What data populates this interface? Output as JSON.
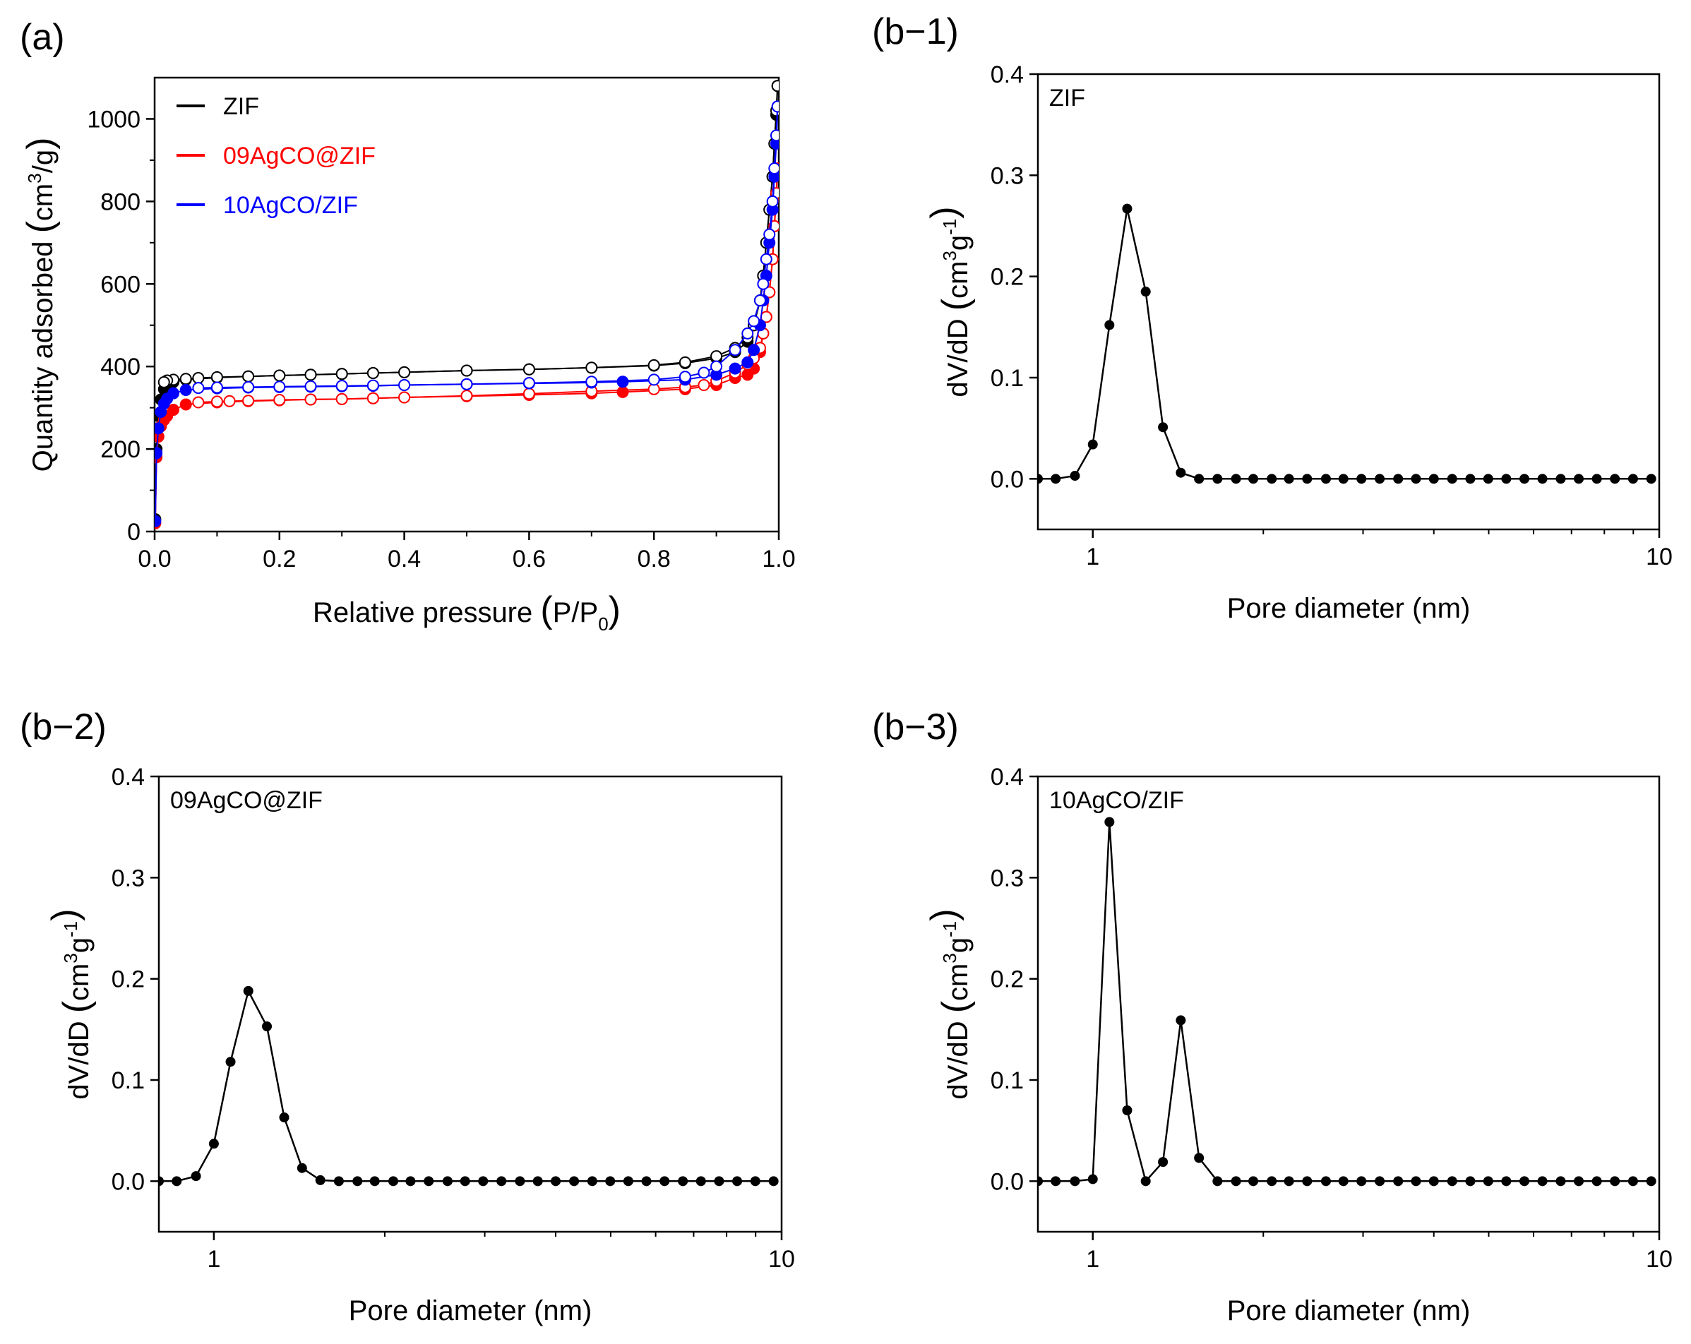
{
  "chart_data": [
    {
      "id": "a",
      "panel_label": "(a)",
      "type": "line",
      "title": "",
      "xlabel": {
        "text": "Relative pressure",
        "open": "(",
        "main": "P/P",
        "sub": "0",
        "close": ")"
      },
      "ylabel": {
        "main": "Quantity adsorbed",
        "open": "(",
        "unit": "cm",
        "sup": "3",
        "unit_tail": "/g",
        "close": ")"
      },
      "xlim": [
        0.0,
        1.0
      ],
      "ylim": [
        0,
        1100
      ],
      "xticks": [
        "0.0",
        "0.2",
        "0.4",
        "0.6",
        "0.8",
        "1.0"
      ],
      "xtick_values": [
        0.0,
        0.2,
        0.4,
        0.6,
        0.8,
        1.0
      ],
      "yticks": [
        "0",
        "200",
        "400",
        "600",
        "800",
        "1000"
      ],
      "ytick_values": [
        0,
        200,
        400,
        600,
        800,
        1000
      ],
      "legend_position": "top-left",
      "marker_note": "filled = adsorption, open = desorption",
      "series": [
        {
          "name": "ZIF",
          "color": "#000000",
          "adsorption": {
            "x": [
              0.001,
              0.003,
              0.006,
              0.01,
              0.015,
              0.02,
              0.03,
              0.05,
              0.1,
              0.15,
              0.2,
              0.25,
              0.3,
              0.35,
              0.4,
              0.5,
              0.6,
              0.7,
              0.8,
              0.85,
              0.9,
              0.93,
              0.95,
              0.96,
              0.97,
              0.975,
              0.98,
              0.985,
              0.99,
              0.993,
              0.996,
              0.998
            ],
            "y": [
              30,
              200,
              280,
              320,
              345,
              355,
              362,
              368,
              373,
              376,
              378,
              380,
              382,
              384,
              386,
              390,
              393,
              397,
              402,
              408,
              420,
              435,
              460,
              500,
              560,
              620,
              700,
              780,
              860,
              940,
              1010,
              1080
            ]
          },
          "desorption": {
            "x": [
              0.998,
              0.996,
              0.993,
              0.99,
              0.985,
              0.98,
              0.975,
              0.97,
              0.96,
              0.95,
              0.93,
              0.9,
              0.85,
              0.8,
              0.7,
              0.6,
              0.5,
              0.4,
              0.35,
              0.3,
              0.25,
              0.2,
              0.15,
              0.1,
              0.07,
              0.05,
              0.03,
              0.02,
              0.015
            ],
            "y": [
              1080,
              1020,
              940,
              860,
              780,
              700,
              620,
              560,
              500,
              470,
              445,
              425,
              410,
              403,
              397,
              393,
              390,
              386,
              384,
              382,
              380,
              378,
              376,
              374,
              372,
              370,
              368,
              366,
              362
            ]
          }
        },
        {
          "name": "09AgCO@ZIF",
          "color": "#ff0000",
          "adsorption": {
            "x": [
              0.001,
              0.003,
              0.006,
              0.01,
              0.015,
              0.02,
              0.03,
              0.05,
              0.1,
              0.15,
              0.2,
              0.25,
              0.3,
              0.35,
              0.4,
              0.5,
              0.6,
              0.7,
              0.75,
              0.85,
              0.9,
              0.93,
              0.95,
              0.96,
              0.97,
              0.975,
              0.98,
              0.985,
              0.99,
              0.993,
              0.996,
              0.998
            ],
            "y": [
              20,
              180,
              230,
              255,
              270,
              280,
              295,
              308,
              313,
              316,
              318,
              320,
              321,
              323,
              325,
              328,
              331,
              335,
              338,
              345,
              355,
              372,
              380,
              395,
              435,
              480,
              520,
              580,
              660,
              740,
              810,
              880
            ]
          },
          "desorption": {
            "x": [
              0.998,
              0.996,
              0.993,
              0.99,
              0.985,
              0.98,
              0.975,
              0.97,
              0.96,
              0.95,
              0.93,
              0.9,
              0.88,
              0.85,
              0.8,
              0.7,
              0.6,
              0.5,
              0.4,
              0.35,
              0.3,
              0.25,
              0.2,
              0.15,
              0.12,
              0.1,
              0.07
            ],
            "y": [
              880,
              820,
              740,
              660,
              580,
              520,
              480,
              445,
              420,
              405,
              385,
              365,
              355,
              350,
              345,
              340,
              334,
              329,
              325,
              323,
              321,
              320,
              319,
              317,
              316,
              315,
              313
            ]
          }
        },
        {
          "name": "10AgCO/ZIF",
          "color": "#0000ff",
          "adsorption": {
            "x": [
              0.001,
              0.003,
              0.006,
              0.01,
              0.015,
              0.02,
              0.03,
              0.05,
              0.1,
              0.15,
              0.2,
              0.25,
              0.3,
              0.35,
              0.4,
              0.5,
              0.6,
              0.7,
              0.75,
              0.85,
              0.9,
              0.93,
              0.95,
              0.96,
              0.97,
              0.975,
              0.98,
              0.985,
              0.99,
              0.993,
              0.996,
              0.998
            ],
            "y": [
              25,
              190,
              250,
              290,
              310,
              322,
              335,
              343,
              347,
              349,
              350,
              351,
              352,
              353,
              355,
              357,
              359,
              361,
              363,
              368,
              380,
              395,
              410,
              440,
              500,
              560,
              620,
              700,
              780,
              860,
              940,
              1030
            ]
          },
          "desorption": {
            "x": [
              0.998,
              0.996,
              0.993,
              0.99,
              0.985,
              0.98,
              0.975,
              0.97,
              0.96,
              0.95,
              0.93,
              0.9,
              0.88,
              0.85,
              0.8,
              0.7,
              0.6,
              0.5,
              0.4,
              0.35,
              0.3,
              0.25,
              0.2,
              0.15,
              0.1,
              0.07
            ],
            "y": [
              1030,
              960,
              880,
              800,
              720,
              660,
              600,
              560,
              510,
              480,
              440,
              400,
              385,
              375,
              368,
              363,
              360,
              357,
              355,
              354,
              353,
              352,
              351,
              350,
              349,
              348
            ]
          }
        }
      ]
    },
    {
      "id": "b1",
      "panel_label": "(b−1)",
      "type": "line",
      "inset_label": "ZIF",
      "xscale": "log",
      "xlim": [
        0.8,
        10
      ],
      "ylim": [
        -0.05,
        0.4
      ],
      "xlabel": "Pore diameter (nm)",
      "ylabel": {
        "main": "dV/dD",
        "open": "(",
        "unit": "cm",
        "sup1": "3",
        "unit2": "g",
        "sup2": "-1",
        "close": ")"
      },
      "xticks": [
        "1",
        "10"
      ],
      "xtick_values": [
        1,
        10
      ],
      "yticks": [
        "0.0",
        "0.1",
        "0.2",
        "0.3",
        "0.4"
      ],
      "ytick_values": [
        0.0,
        0.1,
        0.2,
        0.3,
        0.4
      ],
      "series": [
        {
          "name": "ZIF",
          "color": "#000000",
          "x": [
            0.8,
            0.86,
            0.93,
            1.0,
            1.07,
            1.15,
            1.24,
            1.33,
            1.43,
            1.54,
            1.66,
            1.79,
            1.92,
            2.07,
            2.22,
            2.39,
            2.58,
            2.77,
            2.98,
            3.21,
            3.46,
            3.72,
            4.0,
            4.31,
            4.64,
            4.99,
            5.37,
            5.78,
            6.22,
            6.7,
            7.21,
            7.76,
            8.35,
            8.99,
            9.68
          ],
          "y": [
            0.0,
            0.0,
            0.003,
            0.034,
            0.152,
            0.267,
            0.185,
            0.051,
            0.006,
            0.0,
            0.0,
            0.0,
            0.0,
            0.0,
            0.0,
            0.0,
            0.0,
            0.0,
            0.0,
            0.0,
            0.0,
            0.0,
            0.0,
            0.0,
            0.0,
            0.0,
            0.0,
            0.0,
            0.0,
            0.0,
            0.0,
            0.0,
            0.0,
            0.0,
            0.0
          ]
        }
      ]
    },
    {
      "id": "b2",
      "panel_label": "(b−2)",
      "type": "line",
      "inset_label": "09AgCO@ZIF",
      "xscale": "log",
      "xlim": [
        0.8,
        10
      ],
      "ylim": [
        -0.05,
        0.4
      ],
      "xlabel": "Pore diameter (nm)",
      "ylabel": {
        "main": "dV/dD",
        "open": "(",
        "unit": "cm",
        "sup1": "3",
        "unit2": "g",
        "sup2": "-1",
        "close": ")"
      },
      "xticks": [
        "1",
        "10"
      ],
      "xtick_values": [
        1,
        10
      ],
      "yticks": [
        "0.0",
        "0.1",
        "0.2",
        "0.3",
        "0.4"
      ],
      "ytick_values": [
        0.0,
        0.1,
        0.2,
        0.3,
        0.4
      ],
      "series": [
        {
          "name": "09AgCO@ZIF",
          "color": "#000000",
          "x": [
            0.8,
            0.86,
            0.93,
            1.0,
            1.07,
            1.15,
            1.24,
            1.33,
            1.43,
            1.54,
            1.66,
            1.79,
            1.92,
            2.07,
            2.22,
            2.39,
            2.58,
            2.77,
            2.98,
            3.21,
            3.46,
            3.72,
            4.0,
            4.31,
            4.64,
            4.99,
            5.37,
            5.78,
            6.22,
            6.7,
            7.21,
            7.76,
            8.35,
            8.99,
            9.68
          ],
          "y": [
            0.0,
            0.0,
            0.005,
            0.037,
            0.118,
            0.188,
            0.153,
            0.063,
            0.013,
            0.001,
            0.0,
            0.0,
            0.0,
            0.0,
            0.0,
            0.0,
            0.0,
            0.0,
            0.0,
            0.0,
            0.0,
            0.0,
            0.0,
            0.0,
            0.0,
            0.0,
            0.0,
            0.0,
            0.0,
            0.0,
            0.0,
            0.0,
            0.0,
            0.0,
            0.0
          ]
        }
      ]
    },
    {
      "id": "b3",
      "panel_label": "(b−3)",
      "type": "line",
      "inset_label": "10AgCO/ZIF",
      "xscale": "log",
      "xlim": [
        0.8,
        10
      ],
      "ylim": [
        -0.05,
        0.4
      ],
      "xlabel": "Pore diameter (nm)",
      "ylabel": {
        "main": "dV/dD",
        "open": "(",
        "unit": "cm",
        "sup1": "3",
        "unit2": "g",
        "sup2": "-1",
        "close": ")"
      },
      "xticks": [
        "1",
        "10"
      ],
      "xtick_values": [
        1,
        10
      ],
      "yticks": [
        "0.0",
        "0.1",
        "0.2",
        "0.3",
        "0.4"
      ],
      "ytick_values": [
        0.0,
        0.1,
        0.2,
        0.3,
        0.4
      ],
      "series": [
        {
          "name": "10AgCO/ZIF",
          "color": "#000000",
          "x": [
            0.8,
            0.86,
            0.93,
            1.0,
            1.07,
            1.15,
            1.24,
            1.33,
            1.43,
            1.54,
            1.66,
            1.79,
            1.92,
            2.07,
            2.22,
            2.39,
            2.58,
            2.77,
            2.98,
            3.21,
            3.46,
            3.72,
            4.0,
            4.31,
            4.64,
            4.99,
            5.37,
            5.78,
            6.22,
            6.7,
            7.21,
            7.76,
            8.35,
            8.99,
            9.68
          ],
          "y": [
            0.0,
            0.0,
            0.0,
            0.002,
            0.355,
            0.07,
            0.0,
            0.019,
            0.159,
            0.023,
            0.0,
            0.0,
            0.0,
            0.0,
            0.0,
            0.0,
            0.0,
            0.0,
            0.0,
            0.0,
            0.0,
            0.0,
            0.0,
            0.0,
            0.0,
            0.0,
            0.0,
            0.0,
            0.0,
            0.0,
            0.0,
            0.0,
            0.0,
            0.0,
            0.0
          ]
        }
      ]
    }
  ]
}
